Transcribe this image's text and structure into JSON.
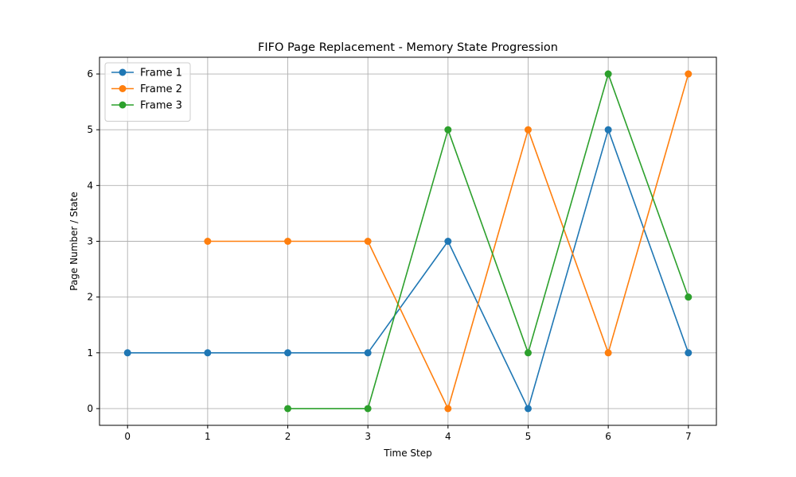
{
  "chart_data": {
    "type": "line",
    "title": "FIFO Page Replacement - Memory State Progression",
    "xlabel": "Time Step",
    "ylabel": "Page Number / State",
    "xlim": [
      -0.35,
      7.35
    ],
    "ylim": [
      -0.3,
      6.3
    ],
    "xticks": [
      0,
      1,
      2,
      3,
      4,
      5,
      6,
      7
    ],
    "yticks": [
      0,
      1,
      2,
      3,
      4,
      5,
      6
    ],
    "grid": true,
    "legend_position": "top-left",
    "series": [
      {
        "name": "Frame 1",
        "color": "#1f77b4",
        "points": [
          [
            0,
            1
          ],
          [
            1,
            1
          ],
          [
            2,
            1
          ],
          [
            3,
            1
          ],
          [
            4,
            3
          ],
          [
            5,
            0
          ],
          [
            6,
            5
          ],
          [
            7,
            1
          ]
        ]
      },
      {
        "name": "Frame 2",
        "color": "#ff7f0e",
        "points": [
          [
            1,
            3
          ],
          [
            2,
            3
          ],
          [
            3,
            3
          ],
          [
            4,
            0
          ],
          [
            5,
            5
          ],
          [
            6,
            1
          ],
          [
            7,
            6
          ]
        ]
      },
      {
        "name": "Frame 3",
        "color": "#2ca02c",
        "points": [
          [
            2,
            0
          ],
          [
            3,
            0
          ],
          [
            4,
            5
          ],
          [
            5,
            1
          ],
          [
            6,
            6
          ],
          [
            7,
            2
          ]
        ]
      }
    ]
  }
}
